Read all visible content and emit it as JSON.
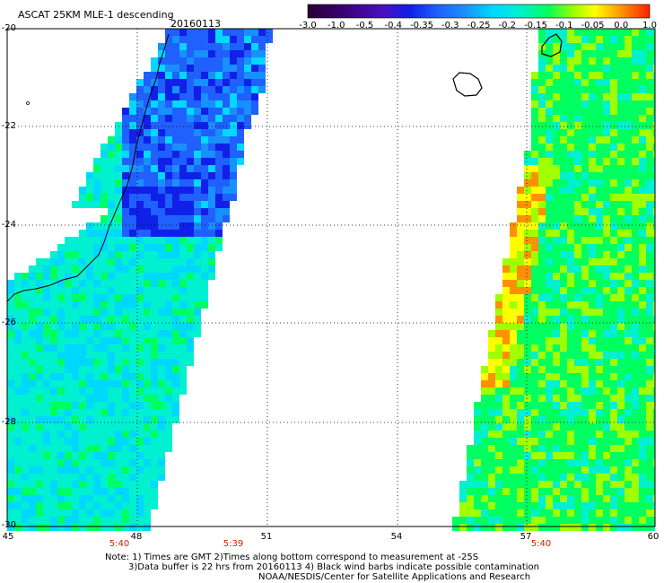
{
  "title": "ASCAT 25KM MLE-1 descending",
  "date": "20160113",
  "colorbar": {
    "ticks": [
      "-3.0",
      "-1.0",
      "-0.5",
      "-0.4",
      "-0.35",
      "-0.3",
      "-0.25",
      "-0.2",
      "-0.15",
      "-0.1",
      "-0.05",
      "0.0",
      "1.0"
    ],
    "colors": [
      "#2a0030",
      "#5a00a0",
      "#1020e8",
      "#2060ff",
      "#1890ff",
      "#00d8ff",
      "#00f0d0",
      "#00ff60",
      "#a0ff00",
      "#ffff00",
      "#ff9000",
      "#ff2000"
    ]
  },
  "axes": {
    "lat_labels": [
      "-20",
      "-22",
      "-24",
      "-26",
      "-28",
      "-30"
    ],
    "lon_labels": [
      "45",
      "48",
      "51",
      "54",
      "57",
      "60"
    ]
  },
  "pass_times": [
    "5:40",
    "5:39",
    "5:40"
  ],
  "notes": {
    "line1": "Note: 1) Times are GMT 2)Times along bottom correspond to measurement at -25S",
    "line2": "3)Data buffer is 22 hrs from 20160113 4) Black wind barbs indicate possible contamination",
    "line3": "NOAA/NESDIS/Center for Satellite Applications and Research"
  }
}
